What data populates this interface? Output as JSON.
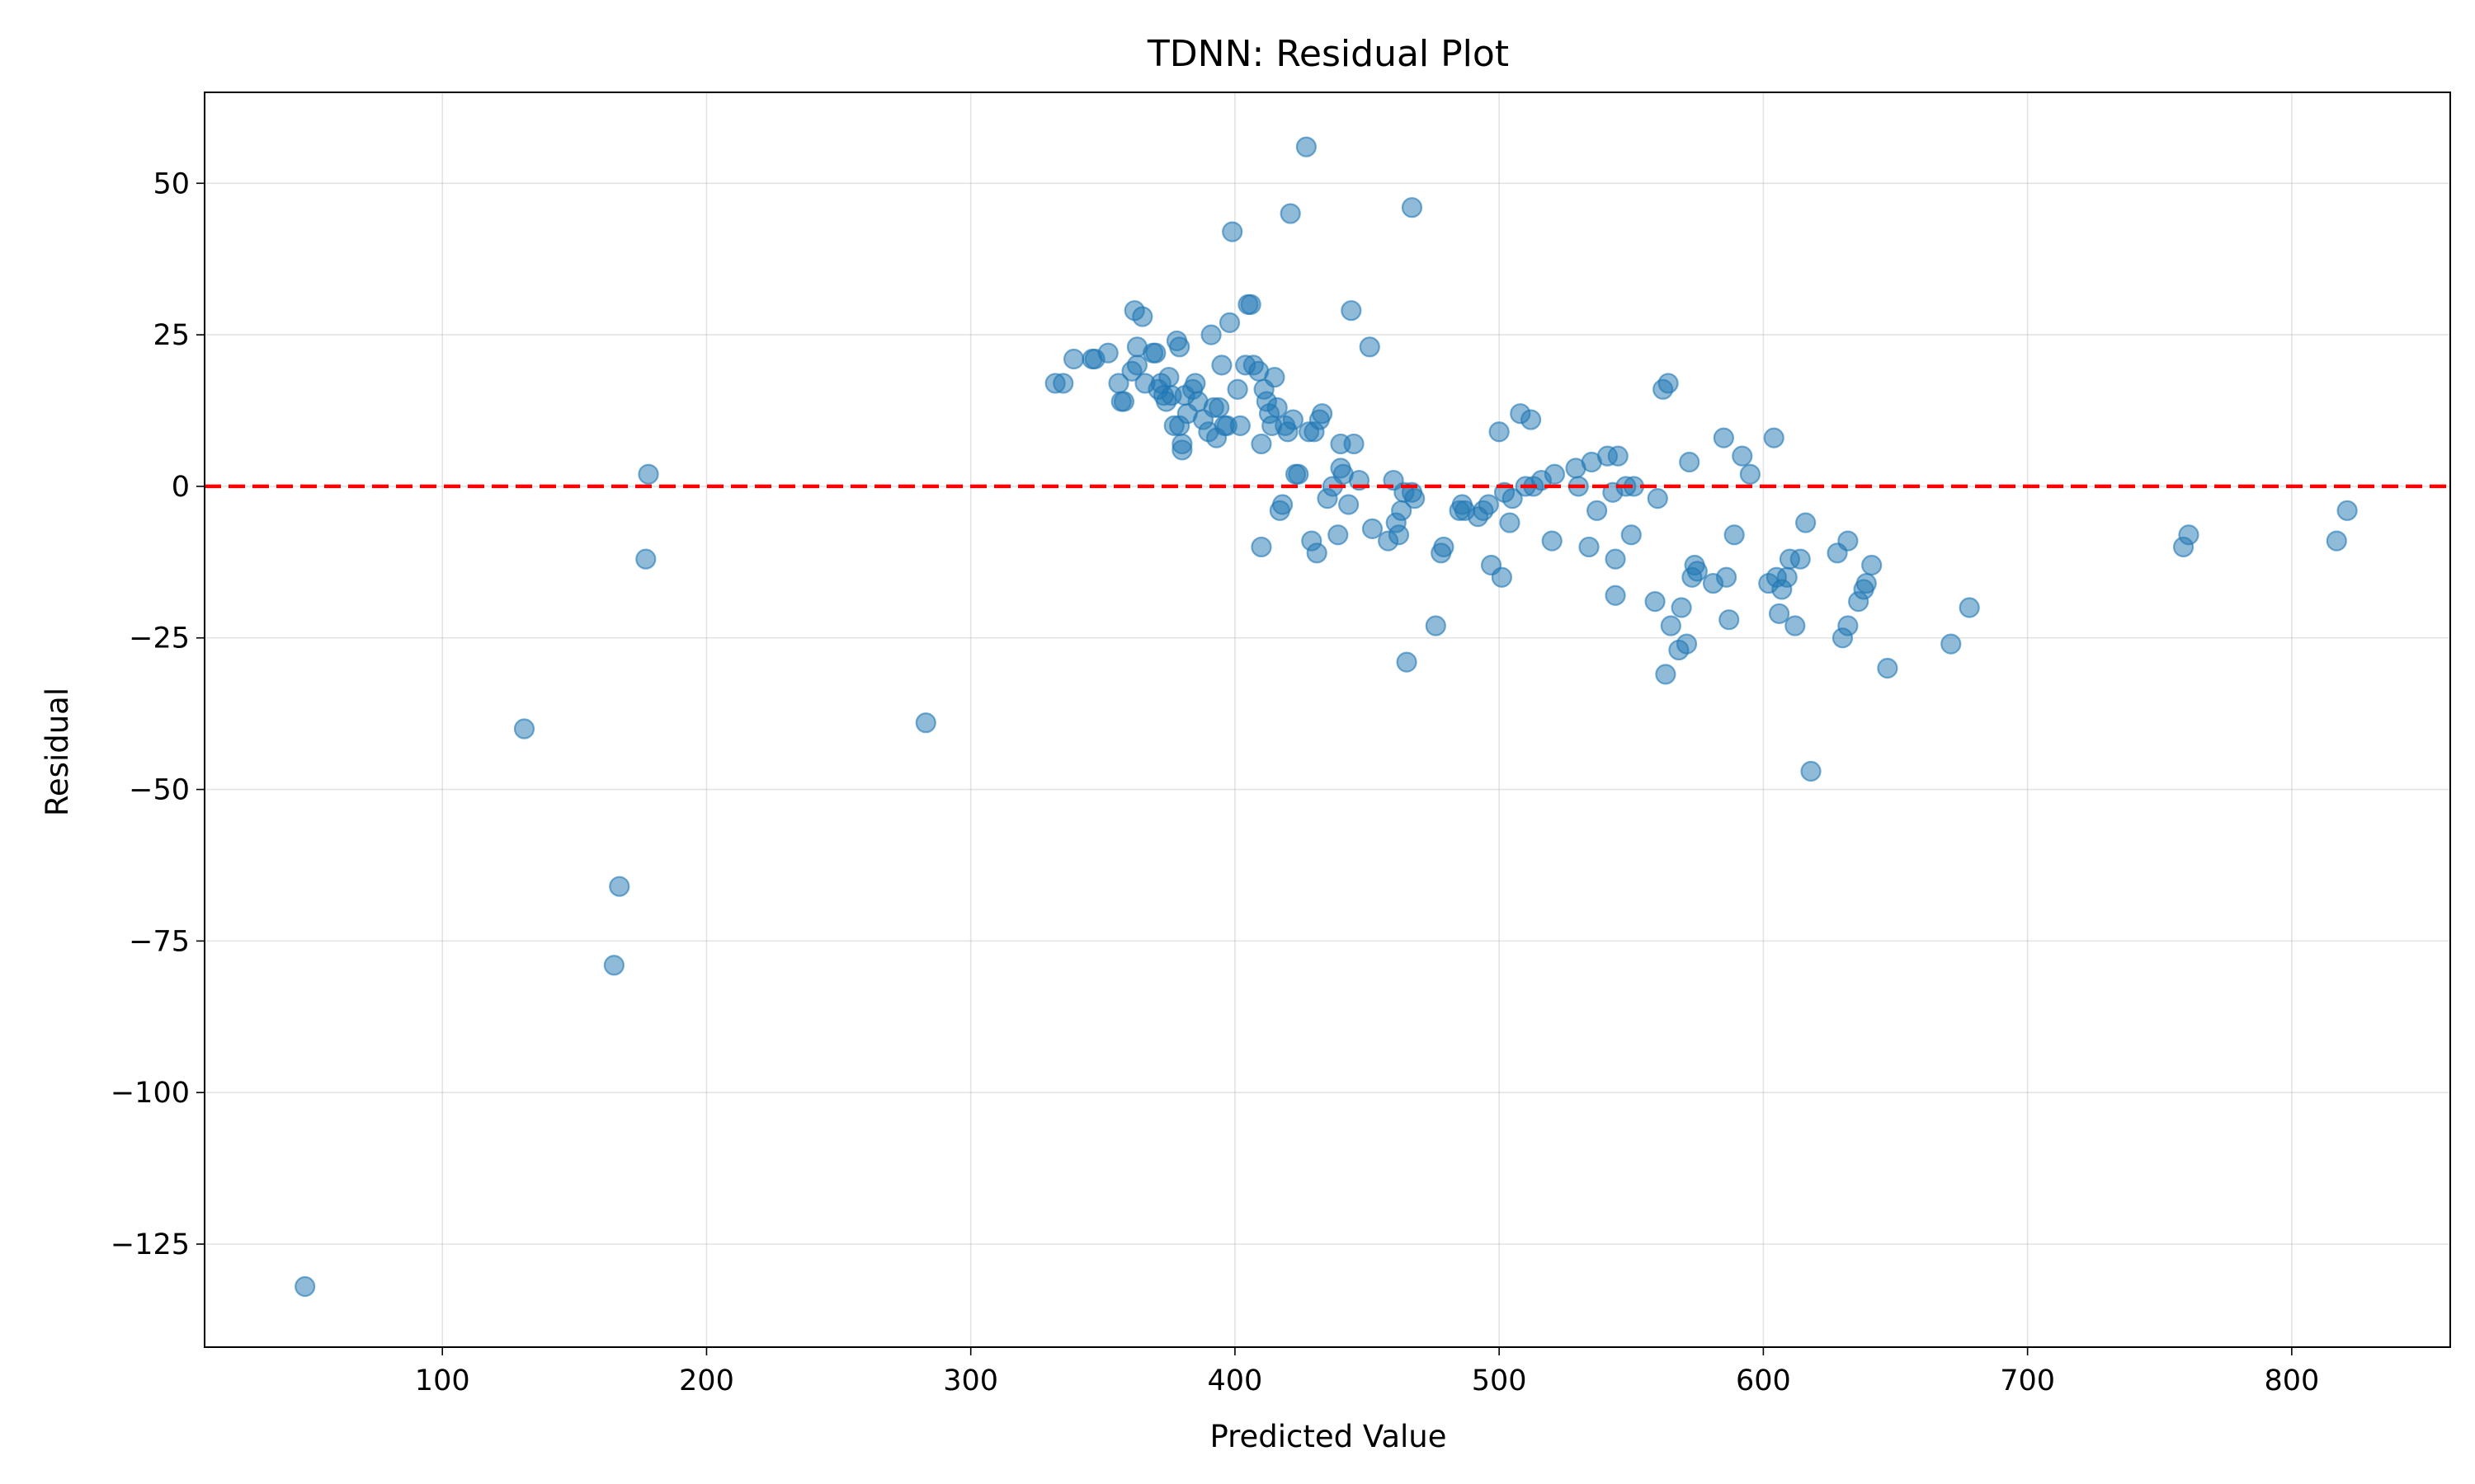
{
  "chart_data": {
    "type": "scatter",
    "title": "TDNN: Residual Plot",
    "xlabel": "Predicted Value",
    "ylabel": "Residual",
    "xlim": [
      10,
      860
    ],
    "ylim": [
      -142,
      65
    ],
    "xticks": [
      100,
      200,
      300,
      400,
      500,
      600,
      700,
      800
    ],
    "yticks": [
      50,
      25,
      0,
      -25,
      -50,
      -75,
      -100,
      -125
    ],
    "ytick_labels": [
      "50",
      "25",
      "0",
      "−25",
      "−50",
      "−75",
      "−100",
      "−125"
    ],
    "grid": true,
    "reference_line": {
      "y": 0,
      "style": "dashed",
      "color": "#ff0000"
    },
    "point_color": "#1f77b4",
    "point_alpha": 0.5,
    "points": [
      [
        48,
        -132
      ],
      [
        131,
        -40
      ],
      [
        165,
        -79
      ],
      [
        167,
        -66
      ],
      [
        177,
        -12
      ],
      [
        178,
        2
      ],
      [
        283,
        -39
      ],
      [
        332,
        17
      ],
      [
        335,
        17
      ],
      [
        339,
        21
      ],
      [
        346,
        21
      ],
      [
        347,
        21
      ],
      [
        352,
        22
      ],
      [
        356,
        17
      ],
      [
        357,
        14
      ],
      [
        358,
        14
      ],
      [
        361,
        19
      ],
      [
        362,
        29
      ],
      [
        363,
        23
      ],
      [
        363,
        20
      ],
      [
        365,
        28
      ],
      [
        366,
        17
      ],
      [
        369,
        22
      ],
      [
        370,
        22
      ],
      [
        371,
        16
      ],
      [
        372,
        17
      ],
      [
        373,
        15
      ],
      [
        374,
        14
      ],
      [
        375,
        18
      ],
      [
        376,
        15
      ],
      [
        377,
        10
      ],
      [
        378,
        24
      ],
      [
        379,
        23
      ],
      [
        379,
        10
      ],
      [
        380,
        7
      ],
      [
        380,
        6
      ],
      [
        381,
        15
      ],
      [
        382,
        12
      ],
      [
        384,
        16
      ],
      [
        385,
        17
      ],
      [
        386,
        14
      ],
      [
        388,
        11
      ],
      [
        390,
        9
      ],
      [
        391,
        25
      ],
      [
        392,
        13
      ],
      [
        393,
        8
      ],
      [
        394,
        13
      ],
      [
        395,
        20
      ],
      [
        396,
        10
      ],
      [
        397,
        10
      ],
      [
        398,
        27
      ],
      [
        399,
        42
      ],
      [
        401,
        16
      ],
      [
        402,
        10
      ],
      [
        404,
        20
      ],
      [
        405,
        30
      ],
      [
        406,
        30
      ],
      [
        407,
        20
      ],
      [
        409,
        19
      ],
      [
        410,
        7
      ],
      [
        410,
        -10
      ],
      [
        411,
        16
      ],
      [
        412,
        14
      ],
      [
        413,
        12
      ],
      [
        414,
        10
      ],
      [
        415,
        18
      ],
      [
        416,
        13
      ],
      [
        417,
        -4
      ],
      [
        418,
        -3
      ],
      [
        419,
        10
      ],
      [
        420,
        9
      ],
      [
        421,
        45
      ],
      [
        422,
        11
      ],
      [
        423,
        2
      ],
      [
        424,
        2
      ],
      [
        427,
        56
      ],
      [
        428,
        9
      ],
      [
        429,
        -9
      ],
      [
        430,
        9
      ],
      [
        431,
        -11
      ],
      [
        432,
        11
      ],
      [
        433,
        12
      ],
      [
        435,
        -2
      ],
      [
        437,
        0
      ],
      [
        439,
        -8
      ],
      [
        440,
        3
      ],
      [
        440,
        7
      ],
      [
        441,
        2
      ],
      [
        443,
        -3
      ],
      [
        444,
        29
      ],
      [
        445,
        7
      ],
      [
        447,
        1
      ],
      [
        451,
        23
      ],
      [
        452,
        -7
      ],
      [
        458,
        -9
      ],
      [
        460,
        1
      ],
      [
        461,
        -6
      ],
      [
        462,
        -8
      ],
      [
        463,
        -4
      ],
      [
        464,
        -1
      ],
      [
        465,
        -29
      ],
      [
        467,
        46
      ],
      [
        467,
        -1
      ],
      [
        468,
        -2
      ],
      [
        476,
        -23
      ],
      [
        478,
        -11
      ],
      [
        479,
        -10
      ],
      [
        485,
        -4
      ],
      [
        486,
        -3
      ],
      [
        487,
        -4
      ],
      [
        492,
        -5
      ],
      [
        494,
        -4
      ],
      [
        496,
        -3
      ],
      [
        497,
        -13
      ],
      [
        500,
        9
      ],
      [
        501,
        -15
      ],
      [
        502,
        -1
      ],
      [
        504,
        -6
      ],
      [
        505,
        -2
      ],
      [
        508,
        12
      ],
      [
        510,
        0
      ],
      [
        512,
        11
      ],
      [
        513,
        0
      ],
      [
        516,
        1
      ],
      [
        520,
        -9
      ],
      [
        521,
        2
      ],
      [
        529,
        3
      ],
      [
        530,
        0
      ],
      [
        534,
        -10
      ],
      [
        535,
        4
      ],
      [
        537,
        -4
      ],
      [
        541,
        5
      ],
      [
        543,
        -1
      ],
      [
        544,
        -12
      ],
      [
        544,
        -18
      ],
      [
        545,
        5
      ],
      [
        548,
        0
      ],
      [
        550,
        -8
      ],
      [
        551,
        0
      ],
      [
        559,
        -19
      ],
      [
        560,
        -2
      ],
      [
        562,
        16
      ],
      [
        563,
        -31
      ],
      [
        564,
        17
      ],
      [
        565,
        -23
      ],
      [
        568,
        -27
      ],
      [
        569,
        -20
      ],
      [
        571,
        -26
      ],
      [
        572,
        4
      ],
      [
        573,
        -15
      ],
      [
        574,
        -13
      ],
      [
        575,
        -14
      ],
      [
        581,
        -16
      ],
      [
        585,
        8
      ],
      [
        586,
        -15
      ],
      [
        587,
        -22
      ],
      [
        589,
        -8
      ],
      [
        592,
        5
      ],
      [
        595,
        2
      ],
      [
        602,
        -16
      ],
      [
        604,
        8
      ],
      [
        605,
        -15
      ],
      [
        606,
        -21
      ],
      [
        607,
        -17
      ],
      [
        609,
        -15
      ],
      [
        610,
        -12
      ],
      [
        612,
        -23
      ],
      [
        614,
        -12
      ],
      [
        616,
        -6
      ],
      [
        618,
        -47
      ],
      [
        628,
        -11
      ],
      [
        630,
        -25
      ],
      [
        632,
        -23
      ],
      [
        632,
        -9
      ],
      [
        636,
        -19
      ],
      [
        638,
        -17
      ],
      [
        639,
        -16
      ],
      [
        641,
        -13
      ],
      [
        647,
        -30
      ],
      [
        671,
        -26
      ],
      [
        678,
        -20
      ],
      [
        759,
        -10
      ],
      [
        761,
        -8
      ],
      [
        817,
        -9
      ],
      [
        821,
        -4
      ]
    ]
  }
}
